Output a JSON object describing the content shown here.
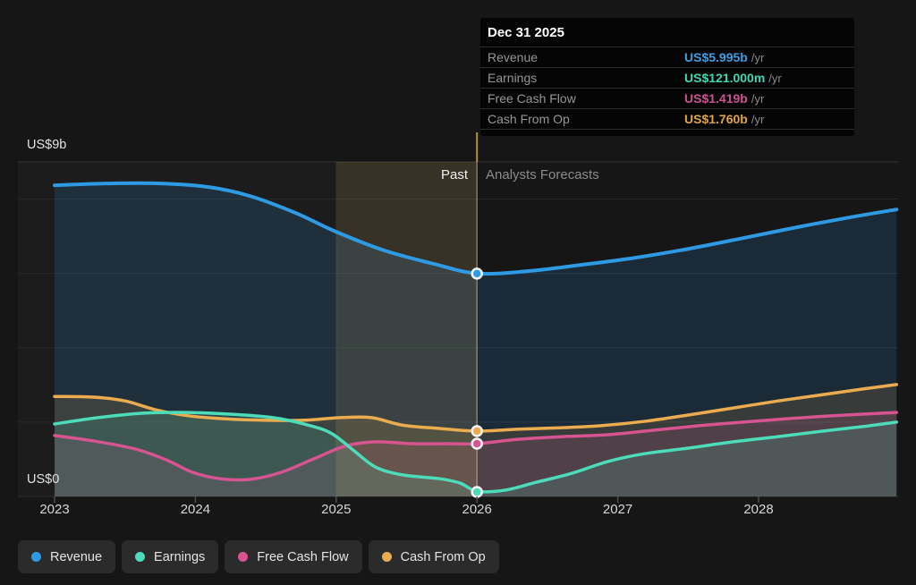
{
  "page": {
    "background": "#161616"
  },
  "tooltip": {
    "title": "Dec 31 2025",
    "rows": [
      {
        "label": "Revenue",
        "value": "US$5.995b",
        "suffix": "/yr",
        "color": "#3f9de2"
      },
      {
        "label": "Earnings",
        "value": "US$121.000m",
        "suffix": "/yr",
        "color": "#43d6b2"
      },
      {
        "label": "Free Cash Flow",
        "value": "US$1.419b",
        "suffix": "/yr",
        "color": "#cc5294"
      },
      {
        "label": "Cash From Op",
        "value": "US$1.760b",
        "suffix": "/yr",
        "color": "#e0a445"
      }
    ]
  },
  "legend": {
    "items": [
      {
        "label": "Revenue",
        "color": "#2f9ae4"
      },
      {
        "label": "Earnings",
        "color": "#4cdcba"
      },
      {
        "label": "Free Cash Flow",
        "color": "#d6548f"
      },
      {
        "label": "Cash From Op",
        "color": "#ebac4f"
      }
    ]
  },
  "chart_data": {
    "type": "area",
    "unit": "US$ billions per year",
    "y_axis": {
      "min": 0,
      "max": 9,
      "min_label": "US$0",
      "max_label": "US$9b",
      "grid_step": 2
    },
    "x_ticks": [
      "2023",
      "2024",
      "2025",
      "2026",
      "2027",
      "2028"
    ],
    "zones": {
      "past_label": "Past",
      "forecast_label": "Analysts Forecasts",
      "split_year": 2026
    },
    "highlight_band": {
      "from_year": 2025,
      "to_year": 2026,
      "color": "rgba(216,178,92,0.15)"
    },
    "series": [
      {
        "name": "Revenue",
        "color": "#2f9ae4",
        "fill": "rgba(47,130,190,0.20)",
        "line_width": 4,
        "points": [
          [
            2023.0,
            8.37
          ],
          [
            2023.37,
            8.42
          ],
          [
            2023.76,
            8.42
          ],
          [
            2024.1,
            8.32
          ],
          [
            2024.39,
            8.08
          ],
          [
            2024.71,
            7.63
          ],
          [
            2025.0,
            7.12
          ],
          [
            2025.34,
            6.62
          ],
          [
            2025.69,
            6.26
          ],
          [
            2026.0,
            6.0
          ],
          [
            2026.36,
            6.06
          ],
          [
            2026.74,
            6.23
          ],
          [
            2027.12,
            6.42
          ],
          [
            2027.5,
            6.66
          ],
          [
            2027.89,
            6.95
          ],
          [
            2028.27,
            7.24
          ],
          [
            2028.65,
            7.51
          ],
          [
            2028.98,
            7.72
          ]
        ]
      },
      {
        "name": "Cash From Op",
        "color": "#ebac4f",
        "fill": "rgba(232,171,76,0.14)",
        "line_width": 3.5,
        "points": [
          [
            2023.0,
            2.69
          ],
          [
            2023.28,
            2.67
          ],
          [
            2023.5,
            2.57
          ],
          [
            2023.72,
            2.33
          ],
          [
            2023.95,
            2.17
          ],
          [
            2024.2,
            2.09
          ],
          [
            2024.49,
            2.05
          ],
          [
            2024.77,
            2.05
          ],
          [
            2025.03,
            2.12
          ],
          [
            2025.25,
            2.12
          ],
          [
            2025.47,
            1.92
          ],
          [
            2025.73,
            1.83
          ],
          [
            2026.0,
            1.76
          ],
          [
            2026.3,
            1.81
          ],
          [
            2026.61,
            1.85
          ],
          [
            2026.87,
            1.9
          ],
          [
            2027.19,
            2.02
          ],
          [
            2027.5,
            2.19
          ],
          [
            2027.82,
            2.38
          ],
          [
            2028.14,
            2.57
          ],
          [
            2028.46,
            2.74
          ],
          [
            2028.74,
            2.89
          ],
          [
            2028.98,
            3.01
          ]
        ]
      },
      {
        "name": "Free Cash Flow",
        "color": "#d6548f",
        "fill": "rgba(214,84,143,0.16)",
        "line_width": 3.5,
        "points": [
          [
            2023.0,
            1.64
          ],
          [
            2023.28,
            1.49
          ],
          [
            2023.57,
            1.28
          ],
          [
            2023.79,
            0.99
          ],
          [
            2023.98,
            0.65
          ],
          [
            2024.17,
            0.48
          ],
          [
            2024.39,
            0.46
          ],
          [
            2024.61,
            0.65
          ],
          [
            2024.84,
            1.01
          ],
          [
            2025.06,
            1.35
          ],
          [
            2025.28,
            1.47
          ],
          [
            2025.53,
            1.42
          ],
          [
            2025.79,
            1.42
          ],
          [
            2026.0,
            1.42
          ],
          [
            2026.3,
            1.54
          ],
          [
            2026.61,
            1.61
          ],
          [
            2026.93,
            1.66
          ],
          [
            2027.25,
            1.78
          ],
          [
            2027.57,
            1.9
          ],
          [
            2027.89,
            2.0
          ],
          [
            2028.2,
            2.09
          ],
          [
            2028.52,
            2.17
          ],
          [
            2028.98,
            2.26
          ]
        ]
      },
      {
        "name": "Earnings",
        "color": "#4cdcba",
        "fill": "rgba(76,220,186,0.15)",
        "line_width": 3.5,
        "points": [
          [
            2023.0,
            1.95
          ],
          [
            2023.31,
            2.12
          ],
          [
            2023.63,
            2.24
          ],
          [
            2023.95,
            2.26
          ],
          [
            2024.26,
            2.21
          ],
          [
            2024.55,
            2.12
          ],
          [
            2024.77,
            1.95
          ],
          [
            2024.96,
            1.71
          ],
          [
            2025.12,
            1.25
          ],
          [
            2025.28,
            0.79
          ],
          [
            2025.47,
            0.58
          ],
          [
            2025.73,
            0.48
          ],
          [
            2025.88,
            0.36
          ],
          [
            2026.0,
            0.14
          ],
          [
            2026.2,
            0.17
          ],
          [
            2026.42,
            0.38
          ],
          [
            2026.68,
            0.63
          ],
          [
            2026.93,
            0.94
          ],
          [
            2027.19,
            1.15
          ],
          [
            2027.5,
            1.3
          ],
          [
            2027.82,
            1.47
          ],
          [
            2028.14,
            1.61
          ],
          [
            2028.46,
            1.76
          ],
          [
            2028.74,
            1.88
          ],
          [
            2028.98,
            2.0
          ]
        ]
      }
    ],
    "markers": {
      "year": 2026,
      "points": [
        {
          "series": "Revenue",
          "value": 5.995
        },
        {
          "series": "Cash From Op",
          "value": 1.76
        },
        {
          "series": "Free Cash Flow",
          "value": 1.419
        },
        {
          "series": "Earnings",
          "value": 0.121
        }
      ]
    }
  }
}
